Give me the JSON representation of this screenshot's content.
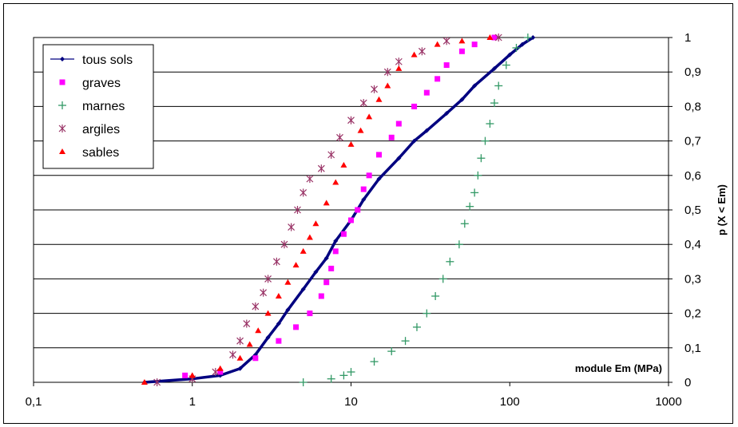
{
  "chart_data": {
    "type": "scatter",
    "title": "",
    "xlabel": "module Em (MPa)",
    "ylabel": "p (X < Em)",
    "x_scale": "log",
    "xlim": [
      0.1,
      1000
    ],
    "ylim": [
      0,
      1
    ],
    "x_ticks": [
      "0,1",
      "1",
      "10",
      "100",
      "1000"
    ],
    "y_ticks": [
      "0",
      "0,1",
      "0,2",
      "0,3",
      "0,4",
      "0,5",
      "0,6",
      "0,7",
      "0,8",
      "0,9",
      "1"
    ],
    "grid": "horizontal",
    "legend_position": "top-left",
    "series": [
      {
        "name": "tous sols",
        "color": "#000080",
        "marker": "diamond-line",
        "x": [
          0.5,
          1.0,
          1.5,
          2.0,
          2.5,
          3.0,
          3.5,
          4.0,
          5.0,
          6.0,
          7.0,
          8.0,
          10.0,
          12.0,
          15.0,
          20.0,
          25.0,
          30.0,
          40.0,
          50.0,
          60.0,
          80.0,
          100.0,
          120.0,
          140.0
        ],
        "y": [
          0.0,
          0.01,
          0.02,
          0.04,
          0.08,
          0.13,
          0.17,
          0.21,
          0.27,
          0.32,
          0.36,
          0.41,
          0.47,
          0.53,
          0.59,
          0.65,
          0.7,
          0.73,
          0.78,
          0.82,
          0.86,
          0.91,
          0.95,
          0.98,
          1.0
        ]
      },
      {
        "name": "graves",
        "color": "#ff00ff",
        "marker": "square",
        "x": [
          0.9,
          1.5,
          2.5,
          3.5,
          4.5,
          5.5,
          6.5,
          7.0,
          7.5,
          8.0,
          9.0,
          10.0,
          11.0,
          12.0,
          13.0,
          15.0,
          18.0,
          20.0,
          25.0,
          30.0,
          35.0,
          40.0,
          50.0,
          60.0,
          80.0
        ],
        "y": [
          0.02,
          0.03,
          0.07,
          0.12,
          0.16,
          0.2,
          0.25,
          0.29,
          0.33,
          0.38,
          0.43,
          0.47,
          0.5,
          0.56,
          0.6,
          0.66,
          0.71,
          0.75,
          0.8,
          0.84,
          0.88,
          0.92,
          0.96,
          0.98,
          1.0
        ]
      },
      {
        "name": "marnes",
        "color": "#339966",
        "marker": "plus",
        "x": [
          5.0,
          7.5,
          9.0,
          10.0,
          14.0,
          18.0,
          22.0,
          26.0,
          30.0,
          34.0,
          38.0,
          42.0,
          48.0,
          52.0,
          56.0,
          60.0,
          63.0,
          66.0,
          70.0,
          75.0,
          80.0,
          85.0,
          95.0,
          110.0,
          130.0
        ],
        "y": [
          0.0,
          0.01,
          0.02,
          0.03,
          0.06,
          0.09,
          0.12,
          0.16,
          0.2,
          0.25,
          0.3,
          0.35,
          0.4,
          0.46,
          0.51,
          0.55,
          0.6,
          0.65,
          0.7,
          0.75,
          0.81,
          0.86,
          0.92,
          0.97,
          1.0
        ]
      },
      {
        "name": "argiles",
        "color": "#993366",
        "marker": "asterisk",
        "x": [
          0.6,
          1.0,
          1.4,
          1.8,
          2.0,
          2.2,
          2.5,
          2.8,
          3.0,
          3.4,
          3.8,
          4.2,
          4.6,
          5.0,
          5.5,
          6.5,
          7.5,
          8.5,
          10.0,
          12.0,
          14.0,
          17.0,
          20.0,
          28.0,
          40.0,
          85.0
        ],
        "y": [
          0.0,
          0.01,
          0.03,
          0.08,
          0.12,
          0.17,
          0.22,
          0.26,
          0.3,
          0.35,
          0.4,
          0.45,
          0.5,
          0.55,
          0.59,
          0.62,
          0.66,
          0.71,
          0.76,
          0.81,
          0.85,
          0.9,
          0.93,
          0.96,
          0.99,
          1.0
        ]
      },
      {
        "name": "sables",
        "color": "#ff0000",
        "marker": "triangle",
        "x": [
          0.5,
          1.0,
          1.5,
          2.0,
          2.3,
          2.6,
          3.0,
          3.5,
          4.0,
          4.5,
          5.0,
          5.5,
          6.0,
          7.0,
          8.0,
          9.0,
          10.0,
          11.5,
          13.0,
          15.0,
          17.0,
          20.0,
          25.0,
          35.0,
          50.0,
          75.0
        ],
        "y": [
          0.0,
          0.02,
          0.04,
          0.07,
          0.11,
          0.15,
          0.2,
          0.25,
          0.29,
          0.34,
          0.38,
          0.42,
          0.46,
          0.52,
          0.58,
          0.63,
          0.69,
          0.73,
          0.77,
          0.82,
          0.86,
          0.91,
          0.95,
          0.98,
          0.99,
          1.0
        ]
      }
    ]
  }
}
